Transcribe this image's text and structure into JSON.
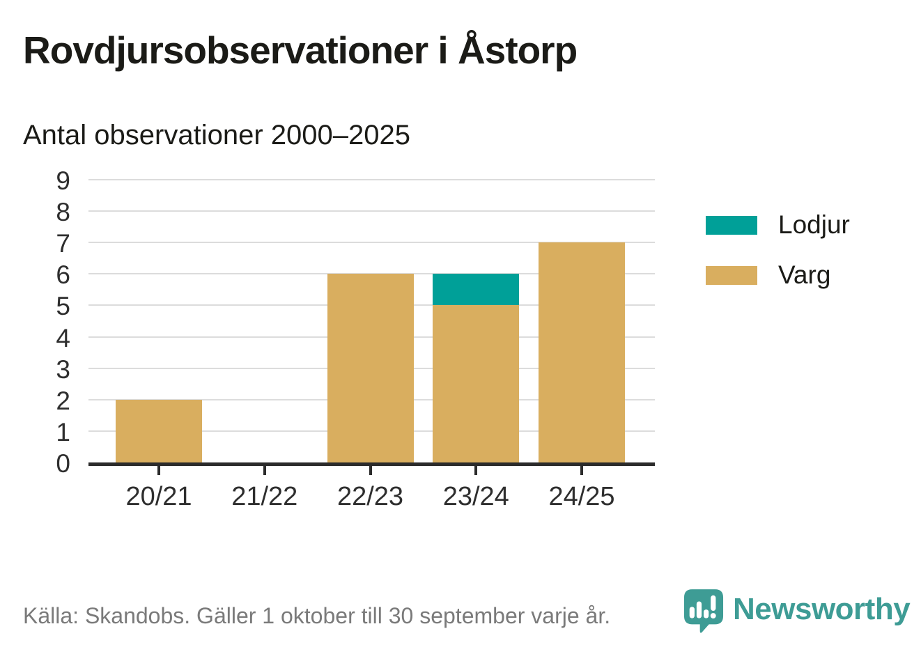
{
  "header": {
    "title": "Rovdjursobservationer i Åstorp",
    "subtitle": "Antal observationer 2000–2025"
  },
  "chart_data": {
    "type": "bar",
    "stacked": true,
    "title": "Rovdjursobservationer i Åstorp",
    "subtitle": "Antal observationer 2000–2025",
    "categories": [
      "20/21",
      "21/22",
      "22/23",
      "23/24",
      "24/25"
    ],
    "series": [
      {
        "name": "Varg",
        "color": "#d9ae5f",
        "values": [
          2,
          0,
          6,
          5,
          7
        ]
      },
      {
        "name": "Lodjur",
        "color": "#00a098",
        "values": [
          0,
          0,
          0,
          1,
          0
        ]
      }
    ],
    "totals": [
      2,
      0,
      6,
      6,
      7
    ],
    "xlabel": "",
    "ylabel": "",
    "ylim": [
      0,
      9
    ],
    "yticks": [
      0,
      1,
      2,
      3,
      4,
      5,
      6,
      7,
      8,
      9
    ],
    "grid": true,
    "legend_position": "right",
    "legend_order": [
      "Lodjur",
      "Varg"
    ]
  },
  "legend": {
    "items": [
      {
        "label": "Lodjur",
        "color": "#00a098"
      },
      {
        "label": "Varg",
        "color": "#d9ae5f"
      }
    ]
  },
  "footer": {
    "source": "Källa: Skandobs. Gäller 1 oktober till 30 september varje år.",
    "brand": "Newsworthy"
  },
  "colors": {
    "varg": "#d9ae5f",
    "lodjur": "#00a098",
    "brand_teal": "#3e9c95",
    "axis": "#2b2b2b",
    "grid": "#dcdcdc",
    "text": "#1b1b17",
    "muted": "#7a7a7a"
  }
}
